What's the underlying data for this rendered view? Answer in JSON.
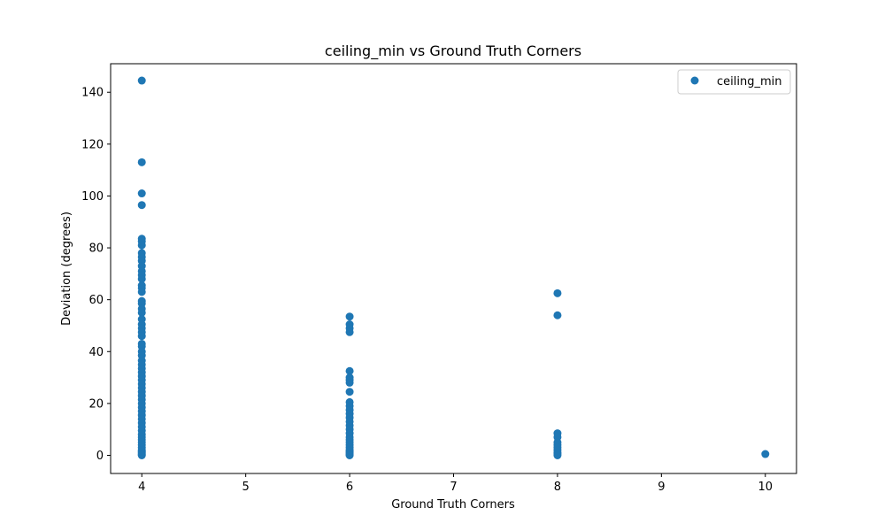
{
  "chart_data": {
    "type": "scatter",
    "title": "ceiling_min vs Ground Truth Corners",
    "xlabel": "Ground Truth Corners",
    "ylabel": "Deviation (degrees)",
    "xlim": [
      3.7,
      10.3
    ],
    "ylim": [
      -7,
      151
    ],
    "xticks": [
      4,
      5,
      6,
      7,
      8,
      9,
      10
    ],
    "yticks": [
      0,
      20,
      40,
      60,
      80,
      100,
      120,
      140
    ],
    "grid": false,
    "legend_position": "top-right",
    "series": [
      {
        "name": "ceiling_min",
        "color": "#1f77b4",
        "points": [
          [
            4,
            144.5
          ],
          [
            4,
            113
          ],
          [
            4,
            101
          ],
          [
            4,
            96.5
          ],
          [
            4,
            83.5
          ],
          [
            4,
            82.5
          ],
          [
            4,
            81
          ],
          [
            4,
            78
          ],
          [
            4,
            76.5
          ],
          [
            4,
            75
          ],
          [
            4,
            73
          ],
          [
            4,
            71
          ],
          [
            4,
            69.5
          ],
          [
            4,
            68
          ],
          [
            4,
            65.5
          ],
          [
            4,
            64.5
          ],
          [
            4,
            63
          ],
          [
            4,
            59.5
          ],
          [
            4,
            58.5
          ],
          [
            4,
            56.5
          ],
          [
            4,
            55
          ],
          [
            4,
            52.5
          ],
          [
            4,
            50.5
          ],
          [
            4,
            49
          ],
          [
            4,
            47.5
          ],
          [
            4,
            46
          ],
          [
            4,
            43
          ],
          [
            4,
            42
          ],
          [
            4,
            40
          ],
          [
            4,
            38.5
          ],
          [
            4,
            36.5
          ],
          [
            4,
            35
          ],
          [
            4,
            33.5
          ],
          [
            4,
            32
          ],
          [
            4,
            30.5
          ],
          [
            4,
            29
          ],
          [
            4,
            27.5
          ],
          [
            4,
            26
          ],
          [
            4,
            24.5
          ],
          [
            4,
            23
          ],
          [
            4,
            21.5
          ],
          [
            4,
            20
          ],
          [
            4,
            18.5
          ],
          [
            4,
            17
          ],
          [
            4,
            15.5
          ],
          [
            4,
            14
          ],
          [
            4,
            12.5
          ],
          [
            4,
            11
          ],
          [
            4,
            9.5
          ],
          [
            4,
            8
          ],
          [
            4,
            7
          ],
          [
            4,
            6
          ],
          [
            4,
            5
          ],
          [
            4,
            4
          ],
          [
            4,
            3
          ],
          [
            4,
            2
          ],
          [
            4,
            1.5
          ],
          [
            4,
            1
          ],
          [
            4,
            0.5
          ],
          [
            4,
            0.2
          ],
          [
            4,
            0
          ],
          [
            6,
            53.5
          ],
          [
            6,
            50.5
          ],
          [
            6,
            49
          ],
          [
            6,
            47.5
          ],
          [
            6,
            32.5
          ],
          [
            6,
            30
          ],
          [
            6,
            29
          ],
          [
            6,
            28
          ],
          [
            6,
            24.5
          ],
          [
            6,
            20.5
          ],
          [
            6,
            19
          ],
          [
            6,
            17.5
          ],
          [
            6,
            16
          ],
          [
            6,
            14.5
          ],
          [
            6,
            13
          ],
          [
            6,
            11.5
          ],
          [
            6,
            10
          ],
          [
            6,
            8.5
          ],
          [
            6,
            7
          ],
          [
            6,
            6
          ],
          [
            6,
            5
          ],
          [
            6,
            4
          ],
          [
            6,
            3
          ],
          [
            6,
            2
          ],
          [
            6,
            1.5
          ],
          [
            6,
            1
          ],
          [
            6,
            0.5
          ],
          [
            6,
            0.2
          ],
          [
            6,
            0
          ],
          [
            8,
            62.5
          ],
          [
            8,
            54
          ],
          [
            8,
            8.5
          ],
          [
            8,
            7
          ],
          [
            8,
            5
          ],
          [
            8,
            4
          ],
          [
            8,
            3
          ],
          [
            8,
            2
          ],
          [
            8,
            1
          ],
          [
            8,
            0.5
          ],
          [
            8,
            0
          ],
          [
            10,
            0.5
          ]
        ]
      }
    ]
  }
}
